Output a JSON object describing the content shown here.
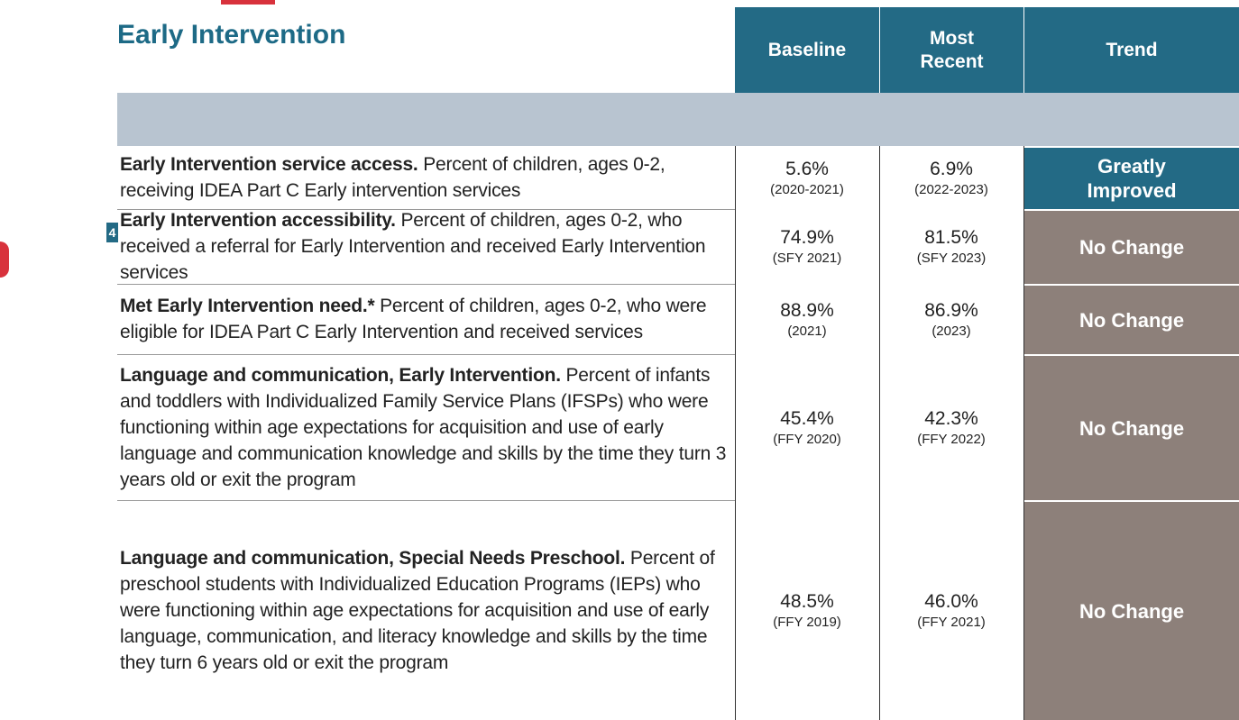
{
  "title": "Early Intervention",
  "badge": "4",
  "header": {
    "columns": [
      "Baseline",
      "Most Recent",
      "Trend"
    ]
  },
  "rows": [
    {
      "lead": "Early Intervention service access.",
      "text": "Percent of children, ages 0-2, receiving IDEA Part C Early intervention services",
      "baseline": {
        "value": "5.6%",
        "period": "(2020-2021)"
      },
      "recent": {
        "value": "6.9%",
        "period": "(2022-2023)"
      },
      "trend": "Greatly Improved"
    },
    {
      "lead": "Early Intervention accessibility.",
      "text": "Percent of children, ages 0-2, who received a referral for Early Intervention and received Early Intervention services",
      "baseline": {
        "value": "74.9%",
        "period": "(SFY 2021)"
      },
      "recent": {
        "value": "81.5%",
        "period": "(SFY 2023)"
      },
      "trend": "No Change"
    },
    {
      "lead": "Met Early Intervention need.*",
      "text": "Percent of children, ages 0-2, who were eligible for IDEA Part C Early Intervention and received services",
      "baseline": {
        "value": "88.9%",
        "period": "(2021)"
      },
      "recent": {
        "value": "86.9%",
        "period": "(2023)"
      },
      "trend": "No Change"
    },
    {
      "lead": "Language and communication, Early Intervention.",
      "text": "Percent of infants and toddlers with Individualized Family Service Plans (IFSPs) who were functioning within age expectations for acquisition and use of early language and communication knowledge and skills by the time they turn 3 years old or exit the program",
      "baseline": {
        "value": "45.4%",
        "period": "(FFY 2020)"
      },
      "recent": {
        "value": "42.3%",
        "period": "(FFY 2022)"
      },
      "trend": "No Change"
    },
    {
      "lead": "Language and communication, Special Needs Preschool.",
      "text": "Percent of preschool students with Individualized Education Programs (IEPs) who were functioning within age expectations for acquisition and use of early language, communication, and literacy knowledge and skills by the time they turn 6 years old or exit the program",
      "baseline": {
        "value": "48.5%",
        "period": "(FFY 2019)"
      },
      "recent": {
        "value": "46.0%",
        "period": "(FFY 2021)"
      },
      "trend": "No Change"
    }
  ]
}
